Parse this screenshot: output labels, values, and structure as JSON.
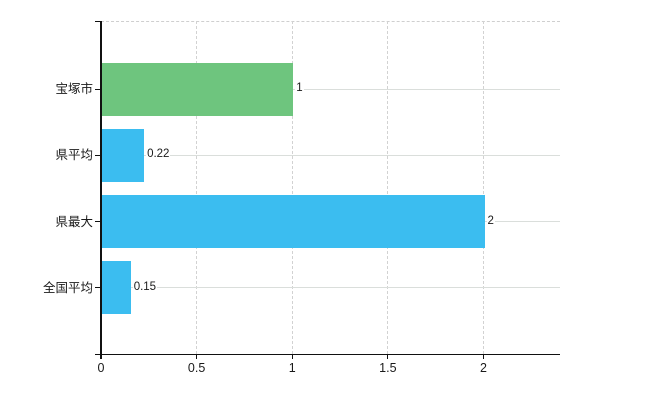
{
  "chart": {
    "background": "#ffffff",
    "axis_color": "#111111",
    "grid_solid_color": "#dadedb",
    "grid_dash_color": "#d2d2d2",
    "text_color": "#1a1a1a",
    "green": "#6ec57e",
    "blue": "#3bbdf0"
  },
  "chart_data": {
    "type": "bar",
    "orientation": "horizontal",
    "title": "",
    "xlabel": "",
    "ylabel": "",
    "categories": [
      "宝塚市",
      "県平均",
      "県最大",
      "全国平均"
    ],
    "values": [
      1,
      0.22,
      2,
      0.15
    ],
    "value_labels": [
      "1",
      "0.22",
      "2",
      "0.15"
    ],
    "bar_colors": [
      "#6ec57e",
      "#3bbdf0",
      "#3bbdf0",
      "#3bbdf0"
    ],
    "xlim": [
      0,
      2.4
    ],
    "xticks": [
      0,
      0.5,
      1,
      1.5,
      2
    ],
    "xtick_labels": [
      "0",
      "0.5",
      "1",
      "1.5",
      "2"
    ],
    "grid": "on",
    "legend": "none"
  }
}
